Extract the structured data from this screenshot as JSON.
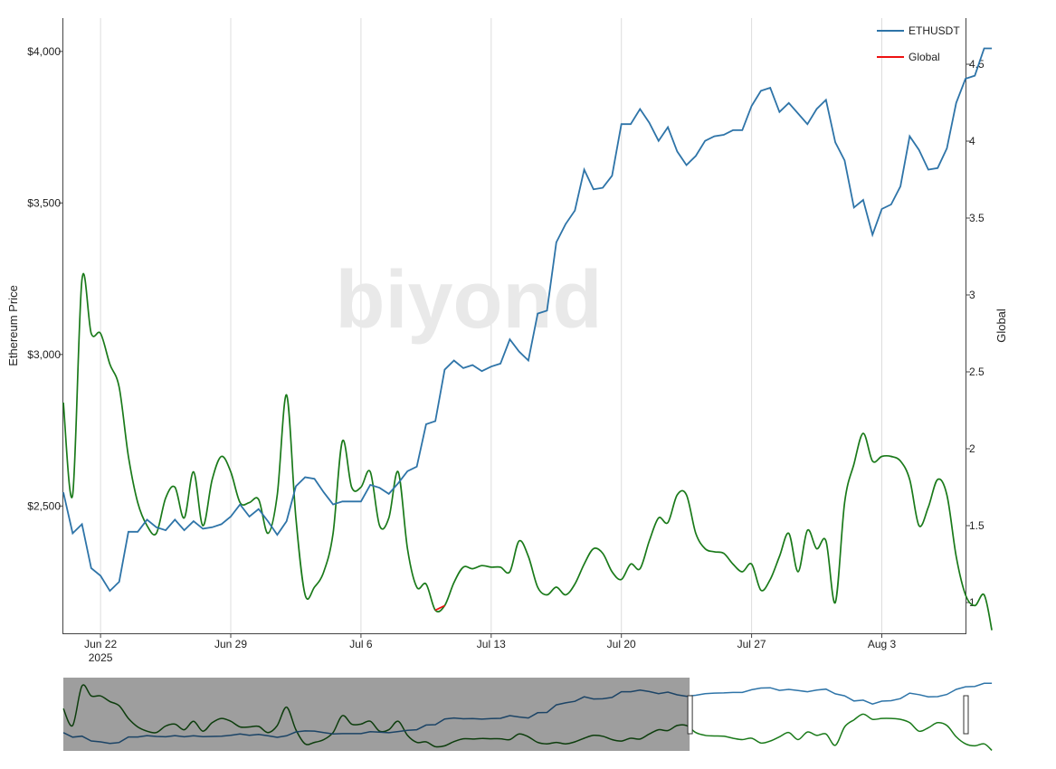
{
  "chart_data": {
    "type": "line",
    "watermark": "biyond",
    "y_left_label": "Ethereum Price",
    "y_right_label": "Global",
    "x_ticks": [
      {
        "date": "2025-06-22",
        "label": "Jun 22",
        "sublabel": "2025"
      },
      {
        "date": "2025-06-29",
        "label": "Jun 29",
        "sublabel": ""
      },
      {
        "date": "2025-07-06",
        "label": "Jul 6",
        "sublabel": ""
      },
      {
        "date": "2025-07-13",
        "label": "Jul 13",
        "sublabel": ""
      },
      {
        "date": "2025-07-20",
        "label": "Jul 20",
        "sublabel": ""
      },
      {
        "date": "2025-07-27",
        "label": "Jul 27",
        "sublabel": ""
      },
      {
        "date": "2025-08-03",
        "label": "Aug 3",
        "sublabel": ""
      }
    ],
    "y_left_ticks": [
      {
        "value": 2500,
        "label": "$2,500"
      },
      {
        "value": 3000,
        "label": "$3,000"
      },
      {
        "value": 3500,
        "label": "$3,500"
      },
      {
        "value": 4000,
        "label": "$4,000"
      }
    ],
    "y_right_ticks": [
      {
        "value": 1,
        "label": "1"
      },
      {
        "value": 1.5,
        "label": "1.5"
      },
      {
        "value": 2,
        "label": "2"
      },
      {
        "value": 2.5,
        "label": "2.5"
      },
      {
        "value": 3,
        "label": "3"
      },
      {
        "value": 3.5,
        "label": "3.5"
      },
      {
        "value": 4,
        "label": "4"
      },
      {
        "value": 4.5,
        "label": "4.5"
      }
    ],
    "x_range": [
      "2025-06-20",
      "2025-08-07 12:00"
    ],
    "y_left_range": [
      2080,
      4110
    ],
    "y_right_range": [
      0.8,
      4.8
    ],
    "grid": "vertical",
    "legend_position": "top-right",
    "legend": [
      {
        "name": "ETHUSDT",
        "color": "#2e74a8"
      },
      {
        "name": "Global",
        "color": "#ee1111"
      }
    ],
    "series": [
      {
        "name": "ETHUSDT",
        "axis": "left",
        "color": "#2e74a8",
        "points": [
          [
            "2025-06-20 00:00",
            2545
          ],
          [
            "2025-06-20 12:00",
            2410
          ],
          [
            "2025-06-21 00:00",
            2440
          ],
          [
            "2025-06-21 12:00",
            2295
          ],
          [
            "2025-06-22 00:00",
            2270
          ],
          [
            "2025-06-22 12:00",
            2220
          ],
          [
            "2025-06-23 00:00",
            2250
          ],
          [
            "2025-06-23 12:00",
            2415
          ],
          [
            "2025-06-24 00:00",
            2415
          ],
          [
            "2025-06-24 12:00",
            2455
          ],
          [
            "2025-06-25 00:00",
            2430
          ],
          [
            "2025-06-25 12:00",
            2420
          ],
          [
            "2025-06-26 00:00",
            2455
          ],
          [
            "2025-06-26 12:00",
            2420
          ],
          [
            "2025-06-27 00:00",
            2450
          ],
          [
            "2025-06-27 12:00",
            2425
          ],
          [
            "2025-06-28 00:00",
            2430
          ],
          [
            "2025-06-28 12:00",
            2440
          ],
          [
            "2025-06-29 00:00",
            2465
          ],
          [
            "2025-06-29 12:00",
            2505
          ],
          [
            "2025-06-30 00:00",
            2465
          ],
          [
            "2025-06-30 12:00",
            2490
          ],
          [
            "2025-07-01 00:00",
            2450
          ],
          [
            "2025-07-01 12:00",
            2405
          ],
          [
            "2025-07-02 00:00",
            2450
          ],
          [
            "2025-07-02 12:00",
            2565
          ],
          [
            "2025-07-03 00:00",
            2595
          ],
          [
            "2025-07-03 12:00",
            2590
          ],
          [
            "2025-07-04 00:00",
            2545
          ],
          [
            "2025-07-04 12:00",
            2505
          ],
          [
            "2025-07-05 00:00",
            2515
          ],
          [
            "2025-07-05 12:00",
            2515
          ],
          [
            "2025-07-06 00:00",
            2515
          ],
          [
            "2025-07-06 12:00",
            2570
          ],
          [
            "2025-07-07 00:00",
            2560
          ],
          [
            "2025-07-07 12:00",
            2540
          ],
          [
            "2025-07-08 00:00",
            2575
          ],
          [
            "2025-07-08 12:00",
            2615
          ],
          [
            "2025-07-09 00:00",
            2630
          ],
          [
            "2025-07-09 12:00",
            2770
          ],
          [
            "2025-07-10 00:00",
            2780
          ],
          [
            "2025-07-10 12:00",
            2950
          ],
          [
            "2025-07-11 00:00",
            2980
          ],
          [
            "2025-07-11 12:00",
            2955
          ],
          [
            "2025-07-12 00:00",
            2965
          ],
          [
            "2025-07-12 12:00",
            2945
          ],
          [
            "2025-07-13 00:00",
            2960
          ],
          [
            "2025-07-13 12:00",
            2970
          ],
          [
            "2025-07-14 00:00",
            3050
          ],
          [
            "2025-07-14 12:00",
            3010
          ],
          [
            "2025-07-15 00:00",
            2980
          ],
          [
            "2025-07-15 12:00",
            3135
          ],
          [
            "2025-07-16 00:00",
            3145
          ],
          [
            "2025-07-16 12:00",
            3370
          ],
          [
            "2025-07-17 00:00",
            3430
          ],
          [
            "2025-07-17 12:00",
            3475
          ],
          [
            "2025-07-18 00:00",
            3610
          ],
          [
            "2025-07-18 12:00",
            3545
          ],
          [
            "2025-07-19 00:00",
            3550
          ],
          [
            "2025-07-19 12:00",
            3590
          ],
          [
            "2025-07-20 00:00",
            3760
          ],
          [
            "2025-07-20 12:00",
            3760
          ],
          [
            "2025-07-21 00:00",
            3810
          ],
          [
            "2025-07-21 12:00",
            3765
          ],
          [
            "2025-07-22 00:00",
            3705
          ],
          [
            "2025-07-22 12:00",
            3750
          ],
          [
            "2025-07-23 00:00",
            3670
          ],
          [
            "2025-07-23 12:00",
            3625
          ],
          [
            "2025-07-24 00:00",
            3655
          ],
          [
            "2025-07-24 12:00",
            3705
          ],
          [
            "2025-07-25 00:00",
            3720
          ],
          [
            "2025-07-25 12:00",
            3725
          ],
          [
            "2025-07-26 00:00",
            3740
          ],
          [
            "2025-07-26 12:00",
            3740
          ],
          [
            "2025-07-27 00:00",
            3820
          ],
          [
            "2025-07-27 12:00",
            3870
          ],
          [
            "2025-07-28 00:00",
            3880
          ],
          [
            "2025-07-28 12:00",
            3800
          ],
          [
            "2025-07-29 00:00",
            3830
          ],
          [
            "2025-07-29 12:00",
            3795
          ],
          [
            "2025-07-30 00:00",
            3760
          ],
          [
            "2025-07-30 12:00",
            3810
          ],
          [
            "2025-07-31 00:00",
            3840
          ],
          [
            "2025-07-31 12:00",
            3700
          ],
          [
            "2025-08-01 00:00",
            3640
          ],
          [
            "2025-08-01 12:00",
            3485
          ],
          [
            "2025-08-02 00:00",
            3510
          ],
          [
            "2025-08-02 12:00",
            3395
          ],
          [
            "2025-08-03 00:00",
            3480
          ],
          [
            "2025-08-03 12:00",
            3495
          ],
          [
            "2025-08-04 00:00",
            3555
          ],
          [
            "2025-08-04 12:00",
            3720
          ],
          [
            "2025-08-05 00:00",
            3675
          ],
          [
            "2025-08-05 12:00",
            3610
          ],
          [
            "2025-08-06 00:00",
            3615
          ],
          [
            "2025-08-06 12:00",
            3680
          ],
          [
            "2025-08-07 00:00",
            3830
          ],
          [
            "2025-08-07 12:00",
            3910
          ],
          [
            "2025-08-08 00:00",
            3920
          ],
          [
            "2025-08-08 12:00",
            4010
          ],
          [
            "2025-08-08 22:00",
            4010
          ]
        ]
      },
      {
        "name": "Global",
        "axis": "right",
        "color": "#1a7a1a",
        "color_alt": "#ee1111",
        "alt_threshold": 1.0,
        "points": [
          [
            "2025-06-20 00:00",
            2.3
          ],
          [
            "2025-06-20 12:00",
            1.7
          ],
          [
            "2025-06-21 00:00",
            3.1
          ],
          [
            "2025-06-21 12:00",
            2.75
          ],
          [
            "2025-06-22 00:00",
            2.75
          ],
          [
            "2025-06-22 12:00",
            2.55
          ],
          [
            "2025-06-23 00:00",
            2.4
          ],
          [
            "2025-06-23 12:00",
            1.95
          ],
          [
            "2025-06-24 00:00",
            1.65
          ],
          [
            "2025-06-24 12:00",
            1.5
          ],
          [
            "2025-06-25 00:00",
            1.45
          ],
          [
            "2025-06-25 12:00",
            1.68
          ],
          [
            "2025-06-26 00:00",
            1.75
          ],
          [
            "2025-06-26 12:00",
            1.55
          ],
          [
            "2025-06-27 00:00",
            1.85
          ],
          [
            "2025-06-27 12:00",
            1.5
          ],
          [
            "2025-06-28 00:00",
            1.8
          ],
          [
            "2025-06-28 12:00",
            1.95
          ],
          [
            "2025-06-29 00:00",
            1.85
          ],
          [
            "2025-06-29 12:00",
            1.65
          ],
          [
            "2025-06-30 00:00",
            1.65
          ],
          [
            "2025-06-30 12:00",
            1.67
          ],
          [
            "2025-07-01 00:00",
            1.45
          ],
          [
            "2025-07-01 12:00",
            1.7
          ],
          [
            "2025-07-02 00:00",
            2.35
          ],
          [
            "2025-07-02 12:00",
            1.55
          ],
          [
            "2025-07-03 00:00",
            1.05
          ],
          [
            "2025-07-03 12:00",
            1.1
          ],
          [
            "2025-07-04 00:00",
            1.2
          ],
          [
            "2025-07-04 12:00",
            1.45
          ],
          [
            "2025-07-05 00:00",
            2.05
          ],
          [
            "2025-07-05 12:00",
            1.75
          ],
          [
            "2025-07-06 00:00",
            1.75
          ],
          [
            "2025-07-06 12:00",
            1.85
          ],
          [
            "2025-07-07 00:00",
            1.5
          ],
          [
            "2025-07-07 12:00",
            1.55
          ],
          [
            "2025-07-08 00:00",
            1.85
          ],
          [
            "2025-07-08 12:00",
            1.35
          ],
          [
            "2025-07-09 00:00",
            1.1
          ],
          [
            "2025-07-09 12:00",
            1.12
          ],
          [
            "2025-07-10 00:00",
            0.95
          ],
          [
            "2025-07-10 12:00",
            0.98
          ],
          [
            "2025-07-11 00:00",
            1.13
          ],
          [
            "2025-07-11 12:00",
            1.23
          ],
          [
            "2025-07-12 00:00",
            1.22
          ],
          [
            "2025-07-12 12:00",
            1.24
          ],
          [
            "2025-07-13 00:00",
            1.23
          ],
          [
            "2025-07-13 12:00",
            1.23
          ],
          [
            "2025-07-14 00:00",
            1.2
          ],
          [
            "2025-07-14 12:00",
            1.4
          ],
          [
            "2025-07-15 00:00",
            1.3
          ],
          [
            "2025-07-15 12:00",
            1.1
          ],
          [
            "2025-07-16 00:00",
            1.05
          ],
          [
            "2025-07-16 12:00",
            1.1
          ],
          [
            "2025-07-17 00:00",
            1.05
          ],
          [
            "2025-07-17 12:00",
            1.12
          ],
          [
            "2025-07-18 00:00",
            1.25
          ],
          [
            "2025-07-18 12:00",
            1.35
          ],
          [
            "2025-07-19 00:00",
            1.32
          ],
          [
            "2025-07-19 12:00",
            1.2
          ],
          [
            "2025-07-20 00:00",
            1.15
          ],
          [
            "2025-07-20 12:00",
            1.25
          ],
          [
            "2025-07-21 00:00",
            1.22
          ],
          [
            "2025-07-21 12:00",
            1.4
          ],
          [
            "2025-07-22 00:00",
            1.55
          ],
          [
            "2025-07-22 12:00",
            1.52
          ],
          [
            "2025-07-23 00:00",
            1.7
          ],
          [
            "2025-07-23 12:00",
            1.7
          ],
          [
            "2025-07-24 00:00",
            1.45
          ],
          [
            "2025-07-24 12:00",
            1.35
          ],
          [
            "2025-07-25 00:00",
            1.33
          ],
          [
            "2025-07-25 12:00",
            1.32
          ],
          [
            "2025-07-26 00:00",
            1.25
          ],
          [
            "2025-07-26 12:00",
            1.2
          ],
          [
            "2025-07-27 00:00",
            1.25
          ],
          [
            "2025-07-27 12:00",
            1.08
          ],
          [
            "2025-07-28 00:00",
            1.15
          ],
          [
            "2025-07-28 12:00",
            1.3
          ],
          [
            "2025-07-29 00:00",
            1.45
          ],
          [
            "2025-07-29 12:00",
            1.2
          ],
          [
            "2025-07-30 00:00",
            1.47
          ],
          [
            "2025-07-30 12:00",
            1.35
          ],
          [
            "2025-07-31 00:00",
            1.4
          ],
          [
            "2025-07-31 12:00",
            1.0
          ],
          [
            "2025-08-01 00:00",
            1.65
          ],
          [
            "2025-08-01 12:00",
            1.9
          ],
          [
            "2025-08-02 00:00",
            2.1
          ],
          [
            "2025-08-02 12:00",
            1.92
          ],
          [
            "2025-08-03 00:00",
            1.95
          ],
          [
            "2025-08-03 12:00",
            1.95
          ],
          [
            "2025-08-04 00:00",
            1.92
          ],
          [
            "2025-08-04 12:00",
            1.8
          ],
          [
            "2025-08-05 00:00",
            1.5
          ],
          [
            "2025-08-05 12:00",
            1.62
          ],
          [
            "2025-08-06 00:00",
            1.8
          ],
          [
            "2025-08-06 12:00",
            1.7
          ],
          [
            "2025-08-07 00:00",
            1.3
          ],
          [
            "2025-08-07 12:00",
            1.05
          ],
          [
            "2025-08-08 00:00",
            0.98
          ],
          [
            "2025-08-08 12:00",
            1.05
          ],
          [
            "2025-08-08 22:00",
            0.82
          ]
        ]
      }
    ],
    "range_selector": {
      "selected_end": "2025-07-23 16:00",
      "mask_color": "#999999"
    }
  }
}
